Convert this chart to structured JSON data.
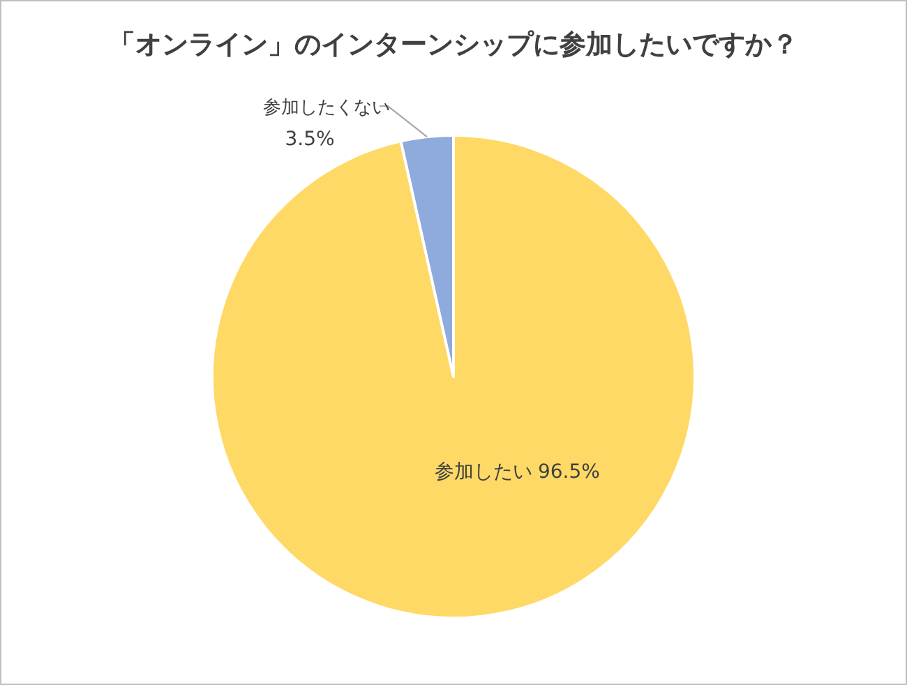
{
  "chart_data": {
    "type": "pie",
    "title": "「オンライン」のインターンシップに参加したいですか？",
    "categories": [
      "参加したい",
      "参加したくない"
    ],
    "values": [
      96.5,
      3.5
    ],
    "colors": [
      "#ffd966",
      "#8faadc"
    ],
    "value_labels": [
      "96.5%",
      "3.5%"
    ]
  }
}
